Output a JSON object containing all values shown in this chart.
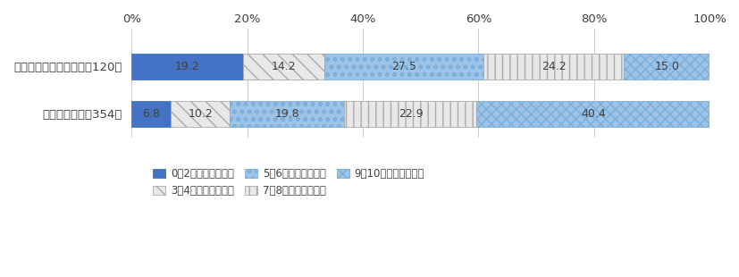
{
  "categories": [
    "傷つけられたと感じた（120）",
    "感じなかった（354）"
  ],
  "series": [
    {
      "label": "0〜2割程度回復した",
      "values": [
        19.2,
        6.8
      ],
      "color": "#4472C4",
      "edgecolor": "#4472C4",
      "hatch": ""
    },
    {
      "label": "3〜4割程度回復した",
      "values": [
        14.2,
        10.2
      ],
      "color": "#e8e8e8",
      "edgecolor": "#aaaaaa",
      "hatch": "\\\\"
    },
    {
      "label": "5〜6割程度回復した",
      "values": [
        27.5,
        19.8
      ],
      "color": "#9DC3E6",
      "edgecolor": "#7aaedb",
      "hatch": "oo"
    },
    {
      "label": "7〜8割程度回復した",
      "values": [
        24.2,
        22.9
      ],
      "color": "#e8e8e8",
      "edgecolor": "#aaaaaa",
      "hatch": "||"
    },
    {
      "label": "9〜10割程度回復した",
      "values": [
        15.0,
        40.4
      ],
      "color": "#9DC3E6",
      "edgecolor": "#7aaedb",
      "hatch": "xxx"
    }
  ],
  "xlim": [
    0,
    100
  ],
  "xticks": [
    0,
    20,
    40,
    60,
    80,
    100
  ],
  "xticklabels": [
    "0%",
    "20%",
    "40%",
    "60%",
    "80%",
    "100%"
  ],
  "bar_height": 0.55,
  "bg_color": "#ffffff",
  "grid_color": "#cccccc",
  "text_color": "#404040",
  "fontsize_label": 9.5,
  "fontsize_bar": 9.0
}
